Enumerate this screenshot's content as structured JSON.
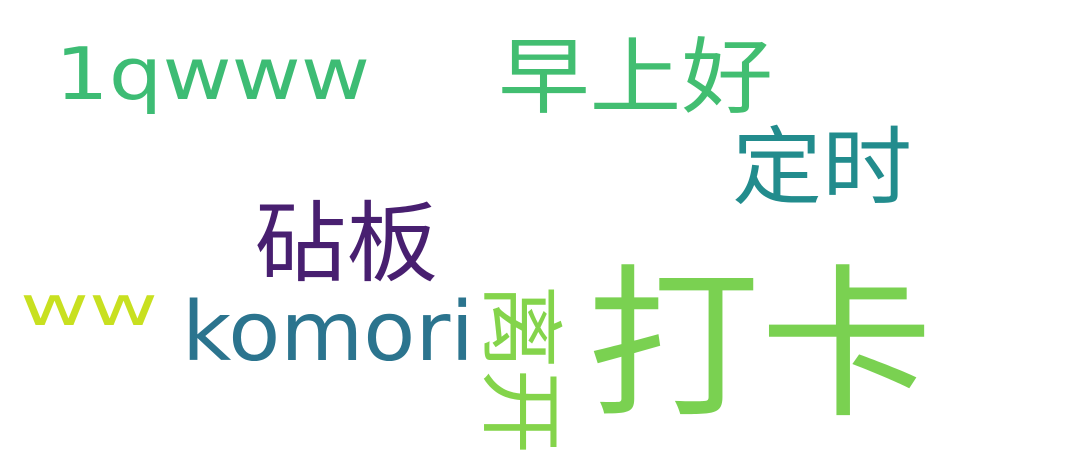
{
  "cloud": {
    "background": "#ffffff",
    "words": [
      {
        "text": "1qwww",
        "color": "#3dbc74",
        "orientation": "horizontal"
      },
      {
        "text": "早上好",
        "color": "#42be71",
        "orientation": "horizontal"
      },
      {
        "text": "定时",
        "color": "#228c8d",
        "orientation": "horizontal"
      },
      {
        "text": "砧板",
        "color": "#481f70",
        "orientation": "horizontal"
      },
      {
        "text": "ww",
        "color": "#c8e020",
        "orientation": "horizontal"
      },
      {
        "text": "komori",
        "color": "#2b748e",
        "orientation": "horizontal"
      },
      {
        "text": "离开",
        "color": "#84d44b",
        "orientation": "vertical"
      },
      {
        "text": "打卡",
        "color": "#7ad151",
        "orientation": "horizontal"
      }
    ]
  }
}
